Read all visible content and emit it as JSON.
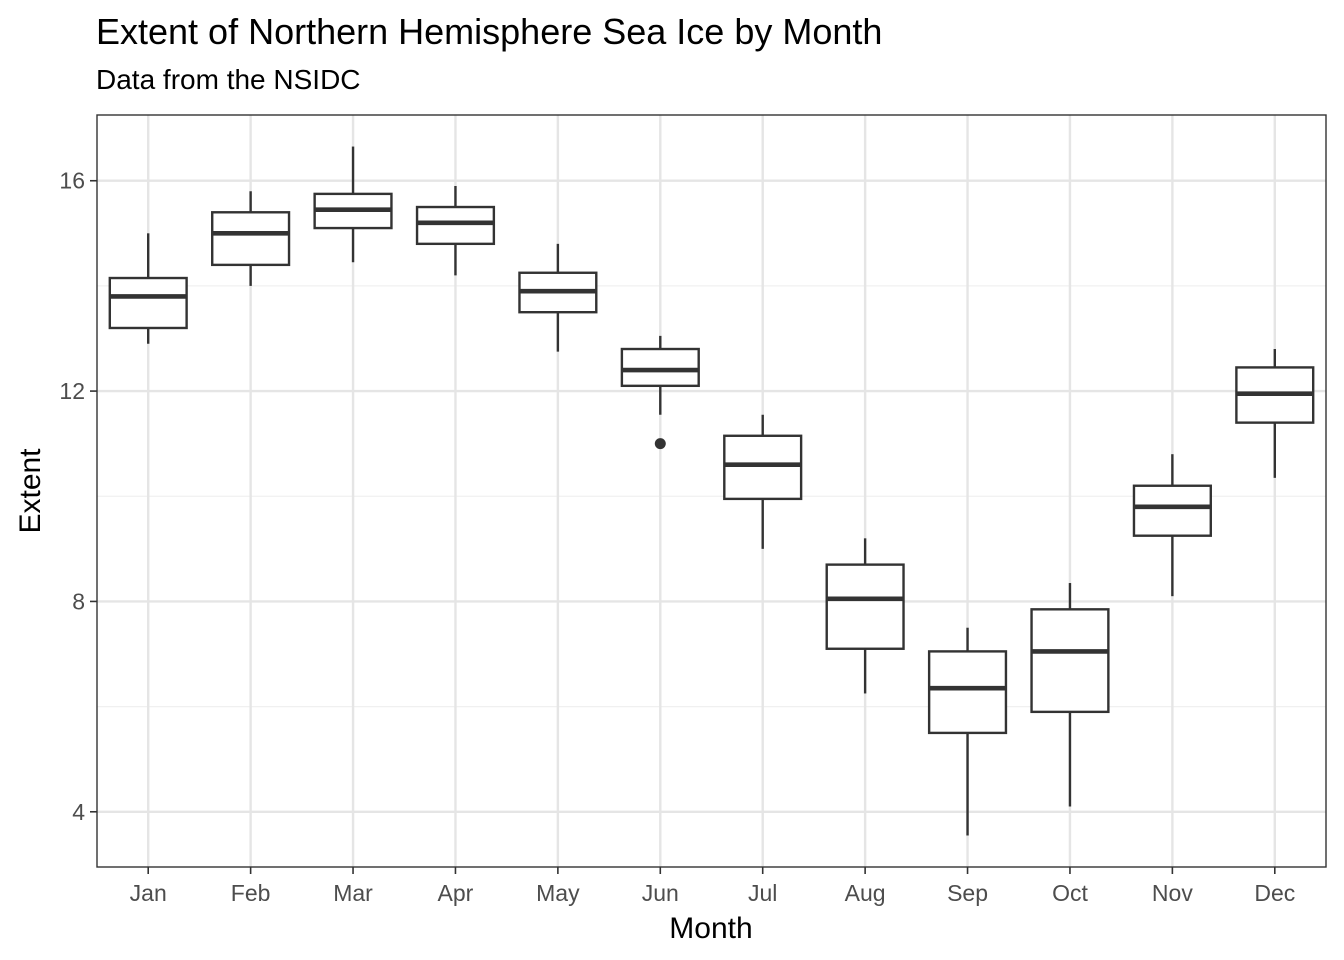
{
  "chart_data": {
    "type": "boxplot",
    "title": "Extent of Northern Hemisphere Sea Ice by Month",
    "subtitle": "Data from the NSIDC",
    "xlabel": "Month",
    "ylabel": "Extent",
    "ylim": [
      2.95,
      17.25
    ],
    "yticks": [
      4,
      8,
      12,
      16
    ],
    "categories": [
      "Jan",
      "Feb",
      "Mar",
      "Apr",
      "May",
      "Jun",
      "Jul",
      "Aug",
      "Sep",
      "Oct",
      "Nov",
      "Dec"
    ],
    "boxes": [
      {
        "month": "Jan",
        "min": 12.9,
        "q1": 13.2,
        "median": 13.8,
        "q3": 14.15,
        "max": 15.0,
        "outliers": []
      },
      {
        "month": "Feb",
        "min": 14.0,
        "q1": 14.4,
        "median": 15.0,
        "q3": 15.4,
        "max": 15.8,
        "outliers": []
      },
      {
        "month": "Mar",
        "min": 14.45,
        "q1": 15.1,
        "median": 15.45,
        "q3": 15.75,
        "max": 16.65,
        "outliers": []
      },
      {
        "month": "Apr",
        "min": 14.2,
        "q1": 14.8,
        "median": 15.2,
        "q3": 15.5,
        "max": 15.9,
        "outliers": []
      },
      {
        "month": "May",
        "min": 12.75,
        "q1": 13.5,
        "median": 13.9,
        "q3": 14.25,
        "max": 14.8,
        "outliers": []
      },
      {
        "month": "Jun",
        "min": 11.55,
        "q1": 12.1,
        "median": 12.4,
        "q3": 12.8,
        "max": 13.05,
        "outliers": [
          11.0
        ]
      },
      {
        "month": "Jul",
        "min": 9.0,
        "q1": 9.95,
        "median": 10.6,
        "q3": 11.15,
        "max": 11.55,
        "outliers": []
      },
      {
        "month": "Aug",
        "min": 6.25,
        "q1": 7.1,
        "median": 8.05,
        "q3": 8.7,
        "max": 9.2,
        "outliers": []
      },
      {
        "month": "Sep",
        "min": 3.55,
        "q1": 5.5,
        "median": 6.35,
        "q3": 7.05,
        "max": 7.5,
        "outliers": []
      },
      {
        "month": "Oct",
        "min": 4.1,
        "q1": 5.9,
        "median": 7.05,
        "q3": 7.85,
        "max": 8.35,
        "outliers": []
      },
      {
        "month": "Nov",
        "min": 8.1,
        "q1": 9.25,
        "median": 9.8,
        "q3": 10.2,
        "max": 10.8,
        "outliers": []
      },
      {
        "month": "Dec",
        "min": 10.35,
        "q1": 11.4,
        "median": 11.95,
        "q3": 12.45,
        "max": 12.8,
        "outliers": []
      }
    ],
    "grid": true,
    "colors": {
      "box_stroke": "#333333",
      "box_fill": "#ffffff",
      "grid_major": "#e5e5e5",
      "grid_minor": "#f0f0f0",
      "panel_border": "#333333",
      "tick_label": "#4d4d4d"
    }
  }
}
